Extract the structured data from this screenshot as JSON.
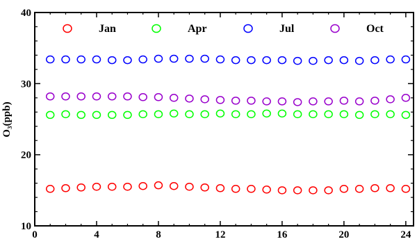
{
  "chart_data": {
    "type": "scatter",
    "title": "",
    "xlabel": "",
    "ylabel": "O₃(ppb)",
    "xlim": [
      0,
      24.5
    ],
    "ylim": [
      10,
      40
    ],
    "xticks": [
      0,
      4,
      8,
      12,
      16,
      20,
      24
    ],
    "yticks": [
      10,
      20,
      30,
      40
    ],
    "grid": false,
    "legend_position": "top",
    "marker": "open-circle",
    "x": [
      1,
      2,
      3,
      4,
      5,
      6,
      7,
      8,
      9,
      10,
      11,
      12,
      13,
      14,
      15,
      16,
      17,
      18,
      19,
      20,
      21,
      22,
      23,
      24
    ],
    "series": [
      {
        "name": "Jan",
        "color": "#ff0000",
        "values": [
          15.2,
          15.3,
          15.4,
          15.5,
          15.5,
          15.5,
          15.6,
          15.7,
          15.6,
          15.5,
          15.4,
          15.3,
          15.2,
          15.2,
          15.1,
          15.0,
          15.0,
          15.0,
          15.0,
          15.2,
          15.2,
          15.3,
          15.3,
          15.2
        ]
      },
      {
        "name": "Apr",
        "color": "#00ff00",
        "values": [
          25.6,
          25.7,
          25.6,
          25.6,
          25.6,
          25.6,
          25.7,
          25.7,
          25.8,
          25.7,
          25.7,
          25.8,
          25.7,
          25.7,
          25.8,
          25.8,
          25.7,
          25.7,
          25.7,
          25.7,
          25.6,
          25.7,
          25.7,
          25.6
        ]
      },
      {
        "name": "Jul",
        "color": "#0000ff",
        "values": [
          33.4,
          33.4,
          33.4,
          33.4,
          33.3,
          33.3,
          33.4,
          33.5,
          33.5,
          33.5,
          33.5,
          33.4,
          33.3,
          33.3,
          33.3,
          33.3,
          33.2,
          33.2,
          33.3,
          33.3,
          33.2,
          33.3,
          33.4,
          33.4
        ]
      },
      {
        "name": "Oct",
        "color": "#9900cc",
        "values": [
          28.2,
          28.2,
          28.2,
          28.2,
          28.2,
          28.2,
          28.1,
          28.1,
          28.0,
          27.9,
          27.8,
          27.7,
          27.6,
          27.6,
          27.5,
          27.5,
          27.4,
          27.5,
          27.5,
          27.6,
          27.5,
          27.6,
          27.8,
          28.0
        ]
      }
    ]
  }
}
